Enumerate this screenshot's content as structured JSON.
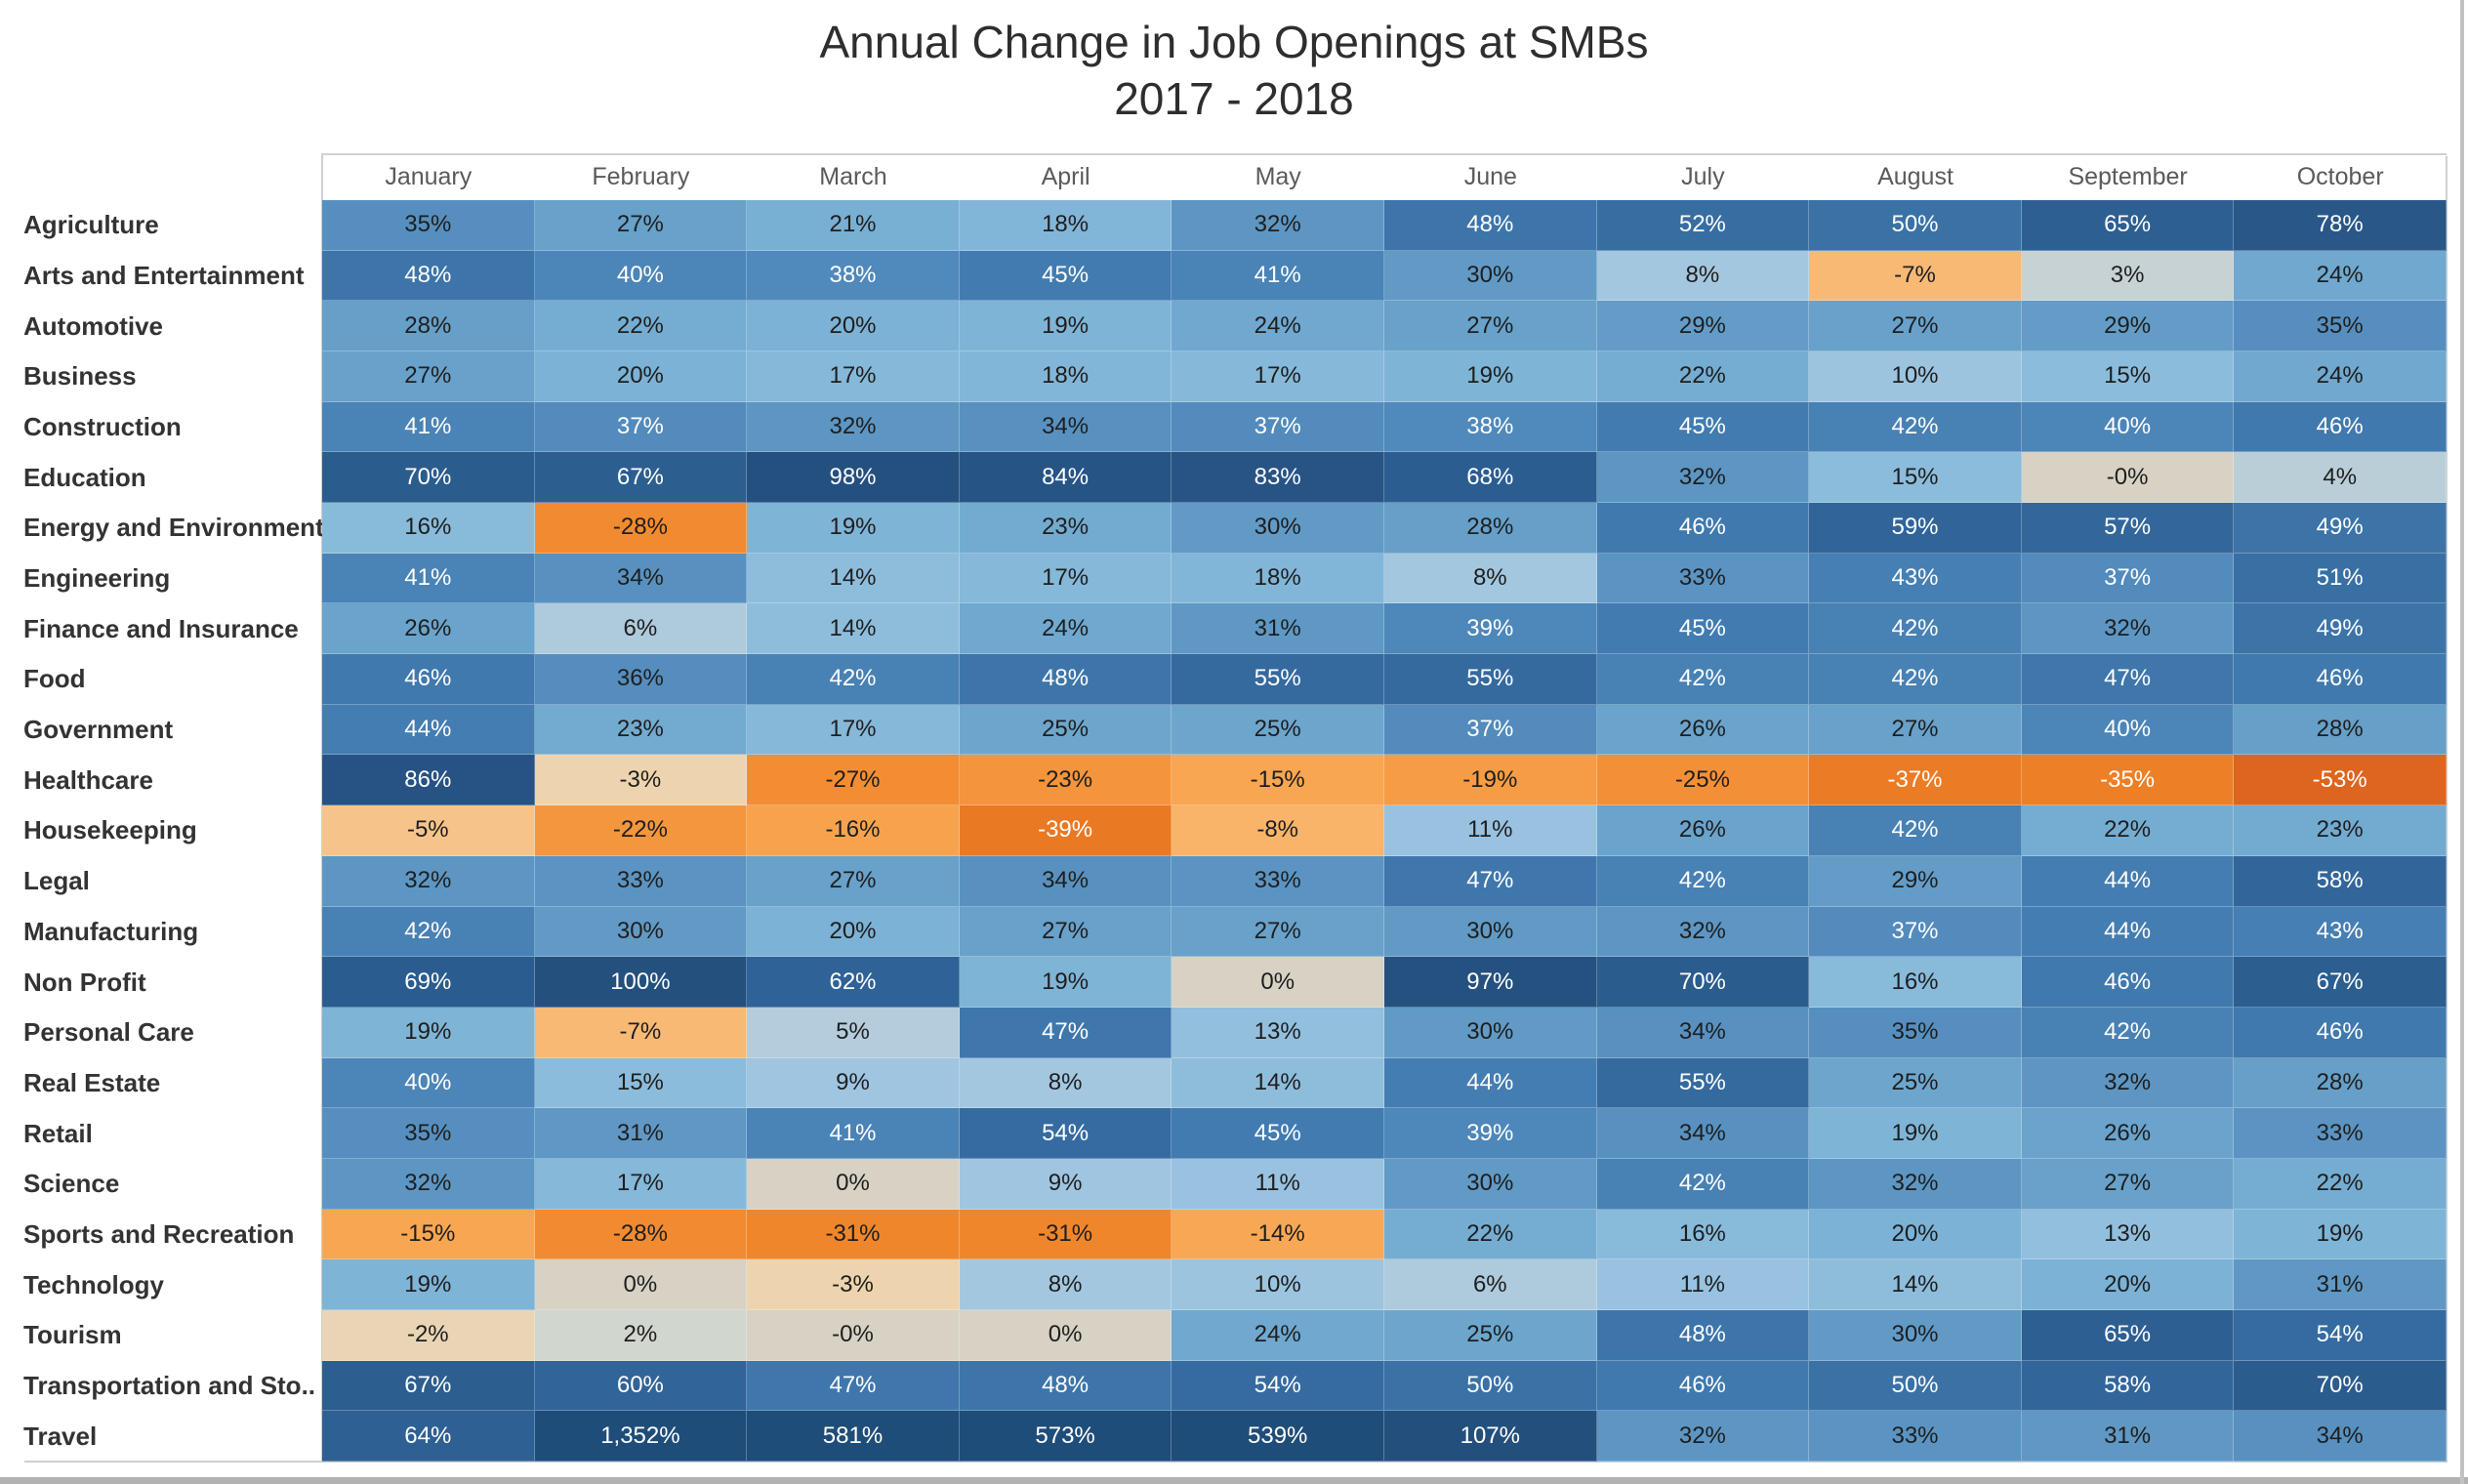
{
  "title": {
    "line1": "Annual Change in Job Openings at SMBs",
    "line2": "2017 - 2018"
  },
  "chart_data": {
    "type": "heatmap",
    "title": "Annual Change in Job Openings at SMBs 2017 - 2018",
    "legend": "none",
    "columns": [
      "January",
      "February",
      "March",
      "April",
      "May",
      "June",
      "July",
      "August",
      "September",
      "October"
    ],
    "rows": [
      {
        "label": "Agriculture",
        "values": [
          "35%",
          "27%",
          "21%",
          "18%",
          "32%",
          "48%",
          "52%",
          "50%",
          "65%",
          "78%"
        ]
      },
      {
        "label": "Arts and Entertainment",
        "values": [
          "48%",
          "40%",
          "38%",
          "45%",
          "41%",
          "30%",
          "8%",
          "-7%",
          "3%",
          "24%"
        ]
      },
      {
        "label": "Automotive",
        "values": [
          "28%",
          "22%",
          "20%",
          "19%",
          "24%",
          "27%",
          "29%",
          "27%",
          "29%",
          "35%"
        ]
      },
      {
        "label": "Business",
        "values": [
          "27%",
          "20%",
          "17%",
          "18%",
          "17%",
          "19%",
          "22%",
          "10%",
          "15%",
          "24%"
        ]
      },
      {
        "label": "Construction",
        "values": [
          "41%",
          "37%",
          "32%",
          "34%",
          "37%",
          "38%",
          "45%",
          "42%",
          "40%",
          "46%"
        ]
      },
      {
        "label": "Education",
        "values": [
          "70%",
          "67%",
          "98%",
          "84%",
          "83%",
          "68%",
          "32%",
          "15%",
          "-0%",
          "4%"
        ]
      },
      {
        "label": "Energy and Environment",
        "values": [
          "16%",
          "-28%",
          "19%",
          "23%",
          "30%",
          "28%",
          "46%",
          "59%",
          "57%",
          "49%"
        ]
      },
      {
        "label": "Engineering",
        "values": [
          "41%",
          "34%",
          "14%",
          "17%",
          "18%",
          "8%",
          "33%",
          "43%",
          "37%",
          "51%"
        ]
      },
      {
        "label": "Finance and Insurance",
        "values": [
          "26%",
          "6%",
          "14%",
          "24%",
          "31%",
          "39%",
          "45%",
          "42%",
          "32%",
          "49%"
        ]
      },
      {
        "label": "Food",
        "values": [
          "46%",
          "36%",
          "42%",
          "48%",
          "55%",
          "55%",
          "42%",
          "42%",
          "47%",
          "46%"
        ]
      },
      {
        "label": "Government",
        "values": [
          "44%",
          "23%",
          "17%",
          "25%",
          "25%",
          "37%",
          "26%",
          "27%",
          "40%",
          "28%"
        ]
      },
      {
        "label": "Healthcare",
        "values": [
          "86%",
          "-3%",
          "-27%",
          "-23%",
          "-15%",
          "-19%",
          "-25%",
          "-37%",
          "-35%",
          "-53%"
        ]
      },
      {
        "label": "Housekeeping",
        "values": [
          "-5%",
          "-22%",
          "-16%",
          "-39%",
          "-8%",
          "11%",
          "26%",
          "42%",
          "22%",
          "23%"
        ]
      },
      {
        "label": "Legal",
        "values": [
          "32%",
          "33%",
          "27%",
          "34%",
          "33%",
          "47%",
          "42%",
          "29%",
          "44%",
          "58%"
        ]
      },
      {
        "label": "Manufacturing",
        "values": [
          "42%",
          "30%",
          "20%",
          "27%",
          "27%",
          "30%",
          "32%",
          "37%",
          "44%",
          "43%"
        ]
      },
      {
        "label": "Non Profit",
        "values": [
          "69%",
          "100%",
          "62%",
          "19%",
          "0%",
          "97%",
          "70%",
          "16%",
          "46%",
          "67%"
        ]
      },
      {
        "label": "Personal Care",
        "values": [
          "19%",
          "-7%",
          "5%",
          "47%",
          "13%",
          "30%",
          "34%",
          "35%",
          "42%",
          "46%"
        ]
      },
      {
        "label": "Real Estate",
        "values": [
          "40%",
          "15%",
          "9%",
          "8%",
          "14%",
          "44%",
          "55%",
          "25%",
          "32%",
          "28%"
        ]
      },
      {
        "label": "Retail",
        "values": [
          "35%",
          "31%",
          "41%",
          "54%",
          "45%",
          "39%",
          "34%",
          "19%",
          "26%",
          "33%"
        ]
      },
      {
        "label": "Science",
        "values": [
          "32%",
          "17%",
          "0%",
          "9%",
          "11%",
          "30%",
          "42%",
          "32%",
          "27%",
          "22%"
        ]
      },
      {
        "label": "Sports and Recreation",
        "values": [
          "-15%",
          "-28%",
          "-31%",
          "-31%",
          "-14%",
          "22%",
          "16%",
          "20%",
          "13%",
          "19%"
        ]
      },
      {
        "label": "Technology",
        "values": [
          "19%",
          "0%",
          "-3%",
          "8%",
          "10%",
          "6%",
          "11%",
          "14%",
          "20%",
          "31%"
        ]
      },
      {
        "label": "Tourism",
        "values": [
          "-2%",
          "2%",
          "-0%",
          "0%",
          "24%",
          "25%",
          "48%",
          "30%",
          "65%",
          "54%"
        ]
      },
      {
        "label": "Transportation and Sto..",
        "values": [
          "67%",
          "60%",
          "47%",
          "48%",
          "54%",
          "50%",
          "46%",
          "50%",
          "58%",
          "70%"
        ]
      },
      {
        "label": "Travel",
        "values": [
          "64%",
          "1,352%",
          "581%",
          "573%",
          "539%",
          "107%",
          "32%",
          "33%",
          "31%",
          "34%"
        ]
      }
    ],
    "color_scale": {
      "description": "diverging orange (negative) to blue (positive), tan-gray near zero",
      "negative_max_color": "#d65c1d",
      "midpoint_color": "#d7d2c4",
      "positive_max_color": "#1f4d79",
      "white_text_pos_threshold": 37,
      "white_text_neg_threshold": -33,
      "dark_text_color": "#1e1e1e",
      "light_text_color": "#ffffff",
      "stops": [
        {
          "v": -60,
          "rgb": [
            214,
            92,
            29
          ]
        },
        {
          "v": -40,
          "rgb": [
            233,
            119,
            34
          ]
        },
        {
          "v": -33,
          "rgb": [
            238,
            131,
            40
          ]
        },
        {
          "v": -27,
          "rgb": [
            242,
            141,
            51
          ]
        },
        {
          "v": -20,
          "rgb": [
            245,
            153,
            66
          ]
        },
        {
          "v": -14,
          "rgb": [
            248,
            168,
            84
          ]
        },
        {
          "v": -8,
          "rgb": [
            249,
            180,
            106
          ]
        },
        {
          "v": -5,
          "rgb": [
            246,
            196,
            138
          ]
        },
        {
          "v": -3,
          "rgb": [
            238,
            212,
            174
          ]
        },
        {
          "v": -1,
          "rgb": [
            227,
            213,
            188
          ]
        },
        {
          "v": 0,
          "rgb": [
            215,
            210,
            196
          ]
        },
        {
          "v": 2,
          "rgb": [
            209,
            214,
            206
          ]
        },
        {
          "v": 4,
          "rgb": [
            186,
            206,
            216
          ]
        },
        {
          "v": 7,
          "rgb": [
            168,
            200,
            224
          ]
        },
        {
          "v": 11,
          "rgb": [
            152,
            194,
            223
          ]
        },
        {
          "v": 16,
          "rgb": [
            136,
            186,
            218
          ]
        },
        {
          "v": 21,
          "rgb": [
            120,
            176,
            212
          ]
        },
        {
          "v": 26,
          "rgb": [
            106,
            163,
            203
          ]
        },
        {
          "v": 31,
          "rgb": [
            95,
            152,
            196
          ]
        },
        {
          "v": 36,
          "rgb": [
            84,
            141,
            190
          ]
        },
        {
          "v": 41,
          "rgb": [
            74,
            131,
            182
          ]
        },
        {
          "v": 46,
          "rgb": [
            64,
            121,
            174
          ]
        },
        {
          "v": 52,
          "rgb": [
            55,
            110,
            162
          ]
        },
        {
          "v": 58,
          "rgb": [
            50,
            102,
            155
          ]
        },
        {
          "v": 65,
          "rgb": [
            45,
            95,
            146
          ]
        },
        {
          "v": 75,
          "rgb": [
            41,
            88,
            138
          ]
        },
        {
          "v": 85,
          "rgb": [
            38,
            83,
            131
          ]
        },
        {
          "v": 100,
          "rgb": [
            36,
            80,
            126
          ]
        },
        {
          "v": 130,
          "rgb": [
            31,
            77,
            121
          ]
        }
      ]
    }
  }
}
